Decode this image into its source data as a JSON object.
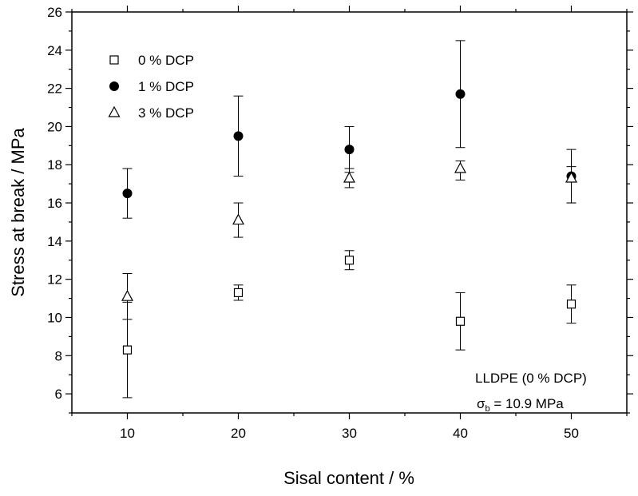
{
  "chart_data": {
    "type": "scatter",
    "xlabel": "Sisal content / %",
    "ylabel": "Stress at break / MPa",
    "xlim": [
      5,
      55
    ],
    "ylim": [
      5,
      26
    ],
    "xticks": [
      10,
      20,
      30,
      40,
      50
    ],
    "yticks": [
      6,
      8,
      10,
      12,
      14,
      16,
      18,
      20,
      22,
      24,
      26
    ],
    "grid": false,
    "legend_position": "top-left",
    "series": [
      {
        "name": "0 % DCP",
        "marker": "open-square",
        "color": "#000000",
        "points": [
          {
            "x": 10,
            "y": 8.3,
            "err_low": 5.8,
            "err_high": 10.8
          },
          {
            "x": 20,
            "y": 11.3,
            "err_low": 10.9,
            "err_high": 11.7
          },
          {
            "x": 30,
            "y": 13.0,
            "err_low": 12.5,
            "err_high": 13.5
          },
          {
            "x": 40,
            "y": 9.8,
            "err_low": 8.3,
            "err_high": 11.3
          },
          {
            "x": 50,
            "y": 10.7,
            "err_low": 9.7,
            "err_high": 11.7
          }
        ]
      },
      {
        "name": "1 % DCP",
        "marker": "filled-circle",
        "color": "#000000",
        "points": [
          {
            "x": 10,
            "y": 16.5,
            "err_low": 15.2,
            "err_high": 17.8
          },
          {
            "x": 20,
            "y": 19.5,
            "err_low": 17.4,
            "err_high": 21.6
          },
          {
            "x": 30,
            "y": 18.8,
            "err_low": 17.6,
            "err_high": 20.0
          },
          {
            "x": 40,
            "y": 21.7,
            "err_low": 18.9,
            "err_high": 24.5
          },
          {
            "x": 50,
            "y": 17.4,
            "err_low": 16.0,
            "err_high": 18.8
          }
        ]
      },
      {
        "name": "3 % DCP",
        "marker": "open-triangle",
        "color": "#000000",
        "points": [
          {
            "x": 10,
            "y": 11.1,
            "err_low": 9.9,
            "err_high": 12.3
          },
          {
            "x": 20,
            "y": 15.1,
            "err_low": 14.2,
            "err_high": 16.0
          },
          {
            "x": 30,
            "y": 17.3,
            "err_low": 16.8,
            "err_high": 17.8
          },
          {
            "x": 40,
            "y": 17.8,
            "err_low": 17.2,
            "err_high": 18.2
          },
          {
            "x": 50,
            "y": 17.3,
            "err_low": 16.0,
            "err_high": 17.9
          }
        ]
      }
    ],
    "annotations": {
      "line1": "LLDPE (0 % DCP)",
      "sigma": "σ",
      "sigma_sub": "b",
      "line2_rest": " = 10.9 MPa"
    }
  }
}
